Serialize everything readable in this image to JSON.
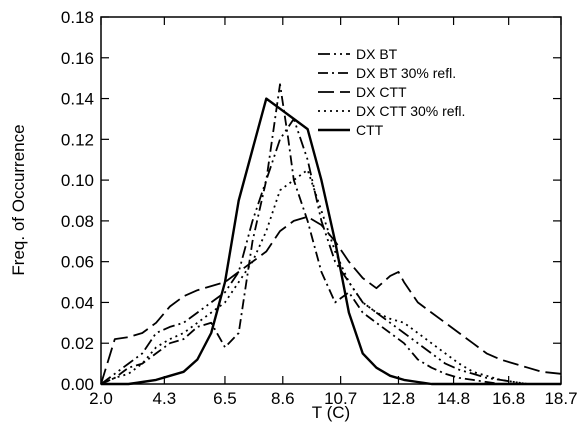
{
  "chart_data": {
    "type": "line",
    "xlabel": "T (C)",
    "ylabel": "Freq. of Occurrence",
    "xlim": [
      2.0,
      18.7
    ],
    "ylim": [
      0.0,
      0.18
    ],
    "x_ticks": [
      2.0,
      4.3,
      6.5,
      8.6,
      10.7,
      12.8,
      14.8,
      16.8,
      18.7
    ],
    "x_tick_labels": [
      "2.0",
      "4.3",
      "6.5",
      "8.6",
      "10.7",
      "12.8",
      "14.8",
      "16.8",
      "18.7"
    ],
    "y_ticks": [
      0.0,
      0.02,
      0.04,
      0.06,
      0.08,
      0.1,
      0.12,
      0.14,
      0.16,
      0.18
    ],
    "y_tick_labels": [
      "0.00",
      "0.02",
      "0.04",
      "0.06",
      "0.08",
      "0.10",
      "0.12",
      "0.14",
      "0.16",
      "0.18"
    ],
    "grid": false,
    "legend_position": "top-right",
    "series": [
      {
        "name": "DX BT",
        "dash": "dash-dot-dot",
        "x": [
          2.0,
          2.5,
          3.0,
          3.5,
          4.0,
          4.5,
          5.0,
          5.5,
          6.0,
          6.5,
          7.0,
          7.5,
          8.0,
          8.5,
          9.0,
          9.5,
          10.0,
          10.5,
          11.0,
          11.5,
          12.0,
          12.5,
          13.0,
          13.5,
          14.0,
          14.5,
          15.0,
          15.5,
          16.0,
          16.5,
          17.0,
          17.5,
          18.0,
          18.7
        ],
        "y": [
          0.0,
          0.005,
          0.01,
          0.015,
          0.025,
          0.028,
          0.03,
          0.035,
          0.04,
          0.045,
          0.055,
          0.08,
          0.1,
          0.12,
          0.13,
          0.11,
          0.08,
          0.06,
          0.05,
          0.04,
          0.035,
          0.03,
          0.025,
          0.02,
          0.015,
          0.01,
          0.007,
          0.005,
          0.003,
          0.002,
          0.001,
          0.0,
          0.0,
          0.0
        ]
      },
      {
        "name": "DX BT 30% refl.",
        "dash": "dash-dot",
        "x": [
          2.0,
          2.5,
          3.0,
          3.5,
          4.0,
          4.5,
          5.0,
          5.5,
          6.0,
          6.5,
          7.0,
          7.5,
          8.0,
          8.5,
          8.8,
          9.0,
          9.5,
          10.0,
          10.5,
          11.0,
          11.5,
          12.0,
          12.5,
          13.0,
          13.5,
          14.0,
          14.5,
          15.0,
          15.5,
          16.0,
          16.5,
          17.0,
          17.5,
          18.0,
          18.7
        ],
        "y": [
          0.0,
          0.003,
          0.008,
          0.01,
          0.015,
          0.02,
          0.022,
          0.028,
          0.03,
          0.018,
          0.025,
          0.07,
          0.1,
          0.147,
          0.12,
          0.1,
          0.08,
          0.055,
          0.04,
          0.045,
          0.035,
          0.03,
          0.025,
          0.02,
          0.012,
          0.008,
          0.005,
          0.003,
          0.002,
          0.001,
          0.0,
          0.0,
          0.0,
          0.0,
          0.0
        ]
      },
      {
        "name": "DX CTT",
        "dash": "long-dash",
        "x": [
          2.0,
          2.5,
          3.0,
          3.5,
          4.0,
          4.5,
          5.0,
          5.5,
          6.0,
          6.5,
          7.0,
          7.5,
          8.0,
          8.5,
          9.0,
          9.5,
          10.0,
          10.5,
          11.0,
          11.5,
          12.0,
          12.5,
          12.8,
          13.0,
          13.5,
          14.0,
          14.5,
          15.0,
          15.5,
          16.0,
          16.5,
          17.0,
          17.5,
          18.0,
          18.7
        ],
        "y": [
          0.0,
          0.022,
          0.023,
          0.025,
          0.03,
          0.038,
          0.043,
          0.046,
          0.048,
          0.05,
          0.055,
          0.06,
          0.065,
          0.075,
          0.08,
          0.082,
          0.078,
          0.07,
          0.06,
          0.052,
          0.047,
          0.053,
          0.055,
          0.05,
          0.04,
          0.035,
          0.03,
          0.025,
          0.02,
          0.015,
          0.012,
          0.01,
          0.008,
          0.006,
          0.005
        ]
      },
      {
        "name": "DX CTT 30% refl.",
        "dash": "dotted",
        "x": [
          2.0,
          2.5,
          3.0,
          3.5,
          4.0,
          4.5,
          5.0,
          5.5,
          6.0,
          6.5,
          7.0,
          7.5,
          8.0,
          8.5,
          9.0,
          9.5,
          10.0,
          10.5,
          11.0,
          11.5,
          12.0,
          12.5,
          13.0,
          13.5,
          14.0,
          14.5,
          15.0,
          15.5,
          16.0,
          16.5,
          17.0,
          17.5,
          18.0,
          18.7
        ],
        "y": [
          0.0,
          0.003,
          0.005,
          0.01,
          0.018,
          0.022,
          0.025,
          0.03,
          0.035,
          0.04,
          0.05,
          0.06,
          0.075,
          0.095,
          0.1,
          0.105,
          0.085,
          0.065,
          0.05,
          0.04,
          0.035,
          0.032,
          0.03,
          0.025,
          0.02,
          0.015,
          0.01,
          0.006,
          0.004,
          0.002,
          0.001,
          0.0,
          0.0,
          0.0
        ]
      },
      {
        "name": "CTT",
        "dash": "solid",
        "x": [
          2.0,
          2.5,
          3.0,
          3.5,
          4.0,
          4.5,
          5.0,
          5.5,
          6.0,
          6.5,
          7.0,
          7.5,
          8.0,
          8.5,
          9.0,
          9.5,
          10.0,
          10.5,
          11.0,
          11.5,
          12.0,
          12.5,
          13.0,
          13.5,
          14.0,
          14.5,
          15.0,
          15.5,
          16.0,
          16.5,
          17.0,
          17.5,
          18.0,
          18.7
        ],
        "y": [
          0.0,
          0.0,
          0.0,
          0.001,
          0.002,
          0.004,
          0.006,
          0.012,
          0.025,
          0.05,
          0.09,
          0.115,
          0.14,
          0.135,
          0.13,
          0.125,
          0.1,
          0.07,
          0.035,
          0.015,
          0.008,
          0.004,
          0.002,
          0.001,
          0.0,
          0.0,
          0.0,
          0.0,
          0.0,
          0.0,
          0.0,
          0.0,
          0.0,
          0.0
        ]
      }
    ]
  }
}
